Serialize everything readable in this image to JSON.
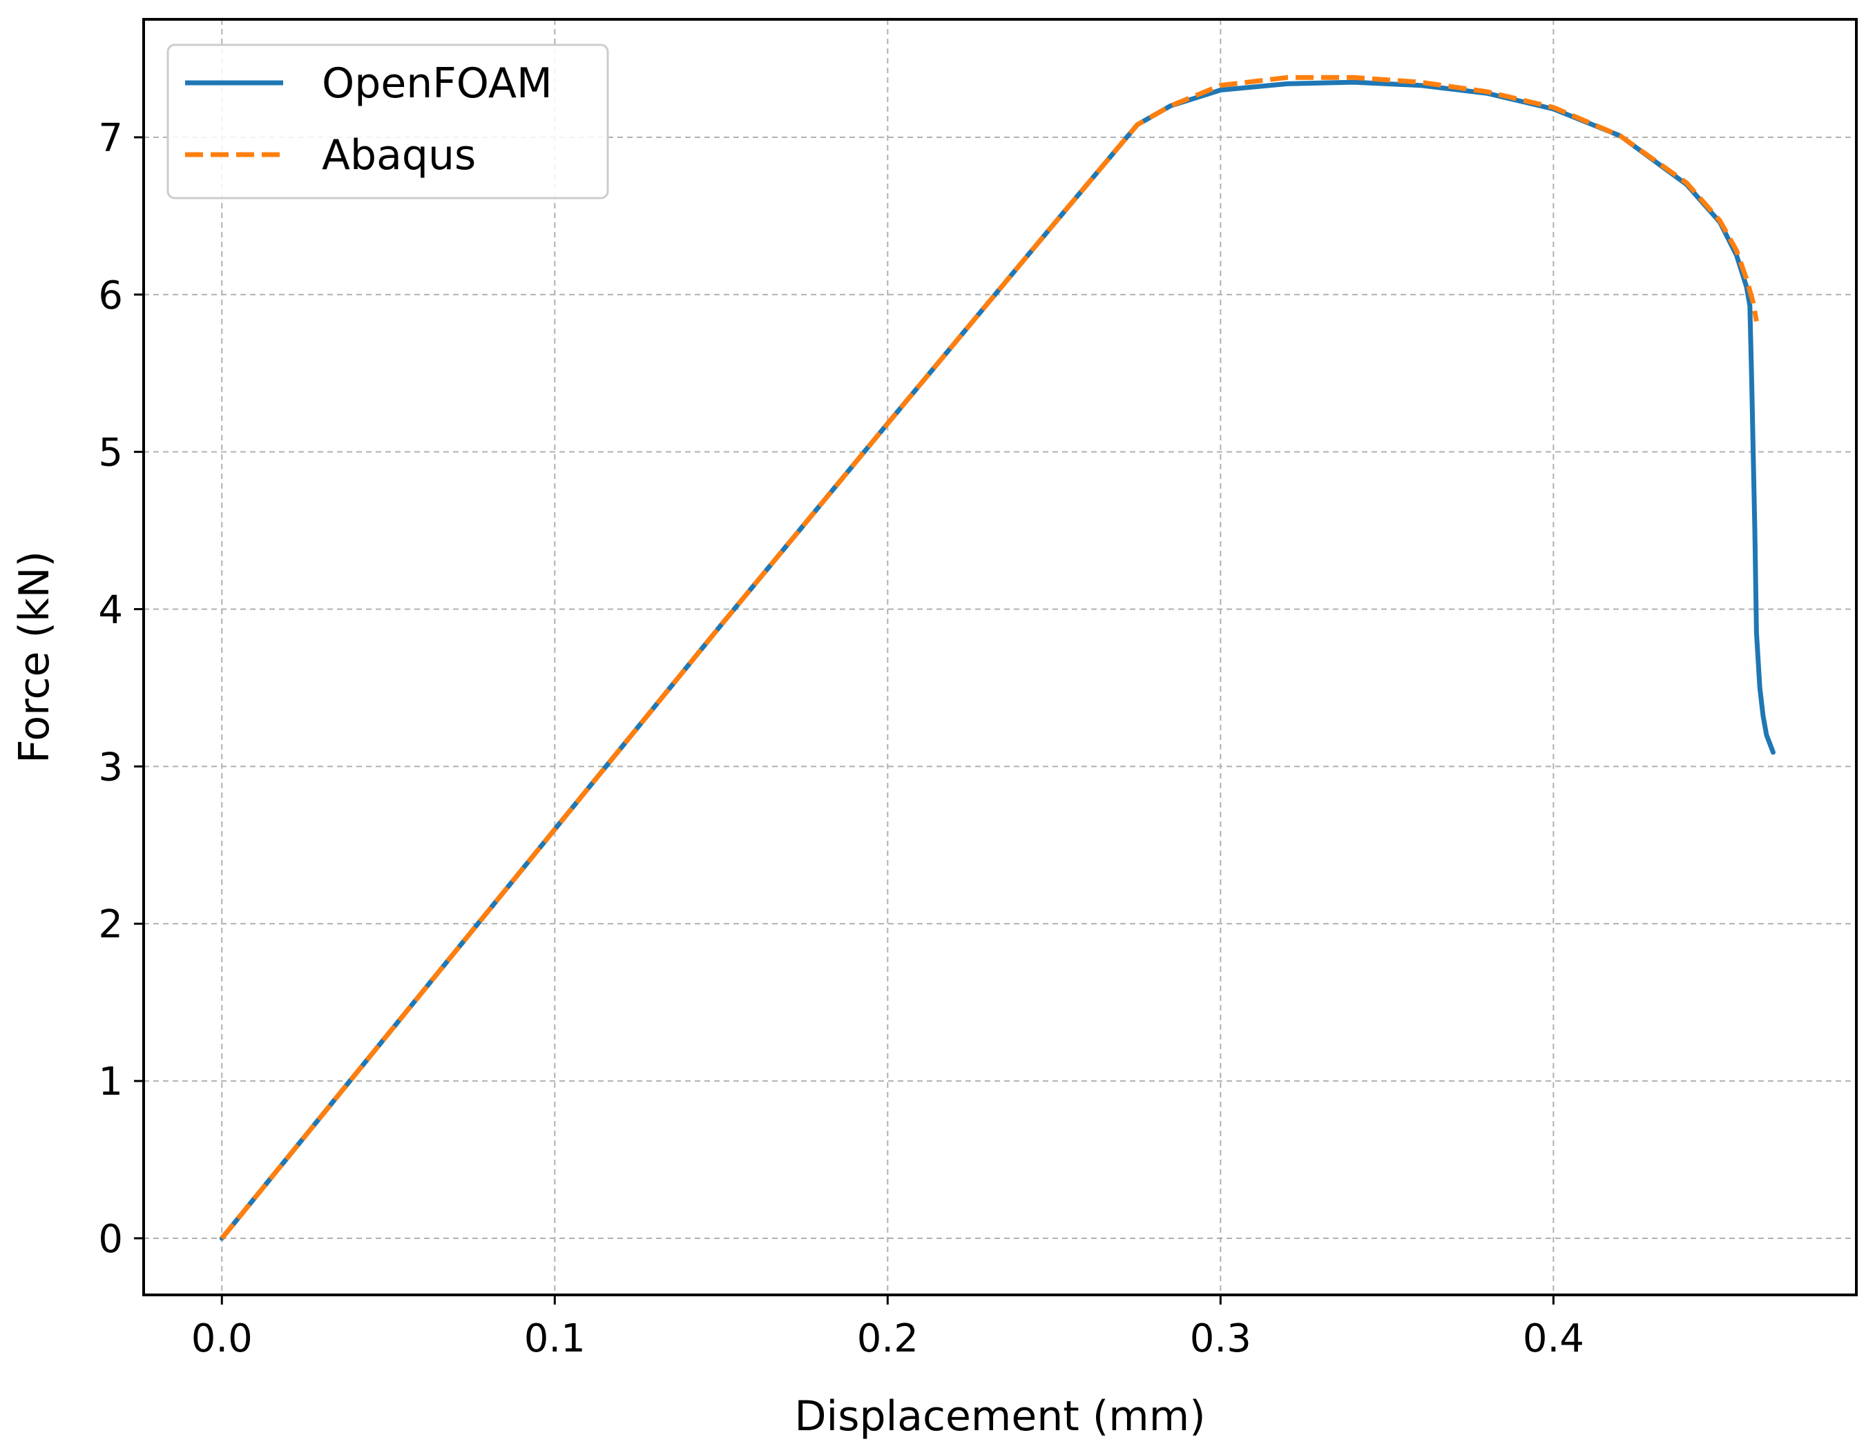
{
  "chart_data": {
    "type": "line",
    "title": "",
    "xlabel": "Displacement (mm)",
    "ylabel": "Force (kN)",
    "xlim": [
      -0.0235,
      0.491
    ],
    "ylim": [
      -0.36,
      7.75
    ],
    "xticks": [
      0.0,
      0.1,
      0.2,
      0.3,
      0.4
    ],
    "xtick_labels": [
      "0.0",
      "0.1",
      "0.2",
      "0.3",
      "0.4"
    ],
    "yticks": [
      0,
      1,
      2,
      3,
      4,
      5,
      6,
      7
    ],
    "ytick_labels": [
      "0",
      "1",
      "2",
      "3",
      "4",
      "5",
      "6",
      "7"
    ],
    "grid": true,
    "legend_position": "top-left",
    "series": [
      {
        "name": "OpenFOAM",
        "color": "#1f77b4",
        "style": "solid",
        "x": [
          0.0,
          0.05,
          0.1,
          0.15,
          0.2,
          0.25,
          0.275,
          0.285,
          0.3,
          0.32,
          0.34,
          0.36,
          0.38,
          0.4,
          0.42,
          0.44,
          0.45,
          0.455,
          0.458,
          0.459,
          0.4595,
          0.4605,
          0.461,
          0.462,
          0.463,
          0.464,
          0.466
        ],
        "y": [
          0.0,
          1.3,
          2.6,
          3.9,
          5.18,
          6.45,
          7.08,
          7.2,
          7.3,
          7.34,
          7.35,
          7.33,
          7.28,
          7.18,
          7.01,
          6.7,
          6.46,
          6.25,
          6.05,
          5.93,
          5.5,
          4.5,
          3.85,
          3.5,
          3.32,
          3.2,
          3.09
        ]
      },
      {
        "name": "Abaqus",
        "color": "#ff7f0e",
        "style": "dashed",
        "x": [
          0.0,
          0.05,
          0.1,
          0.15,
          0.2,
          0.25,
          0.275,
          0.285,
          0.3,
          0.32,
          0.34,
          0.36,
          0.38,
          0.4,
          0.42,
          0.44,
          0.45,
          0.455,
          0.458,
          0.46,
          0.461
        ],
        "y": [
          0.0,
          1.3,
          2.6,
          3.9,
          5.18,
          6.45,
          7.08,
          7.2,
          7.33,
          7.38,
          7.38,
          7.35,
          7.29,
          7.19,
          7.01,
          6.71,
          6.47,
          6.28,
          6.1,
          5.95,
          5.83
        ]
      }
    ]
  }
}
